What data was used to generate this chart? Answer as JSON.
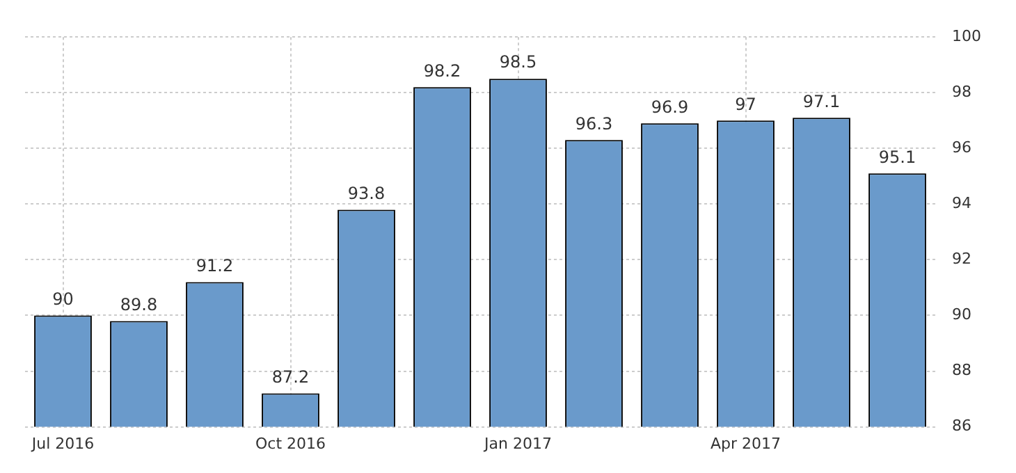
{
  "chart_data": {
    "type": "bar",
    "categories": [
      "Jul 2016",
      null,
      null,
      "Oct 2016",
      null,
      null,
      "Jan 2017",
      null,
      null,
      "Apr 2017",
      null,
      null
    ],
    "values": [
      90,
      89.8,
      91.2,
      87.2,
      93.8,
      98.2,
      98.5,
      96.3,
      96.9,
      97,
      97.1,
      95.1
    ],
    "color": "#6a9acb",
    "ylim": [
      86,
      100
    ],
    "yticks": [
      86,
      88,
      90,
      92,
      94,
      96,
      98,
      100
    ],
    "grid": true,
    "legend": false,
    "data_labels": true
  }
}
